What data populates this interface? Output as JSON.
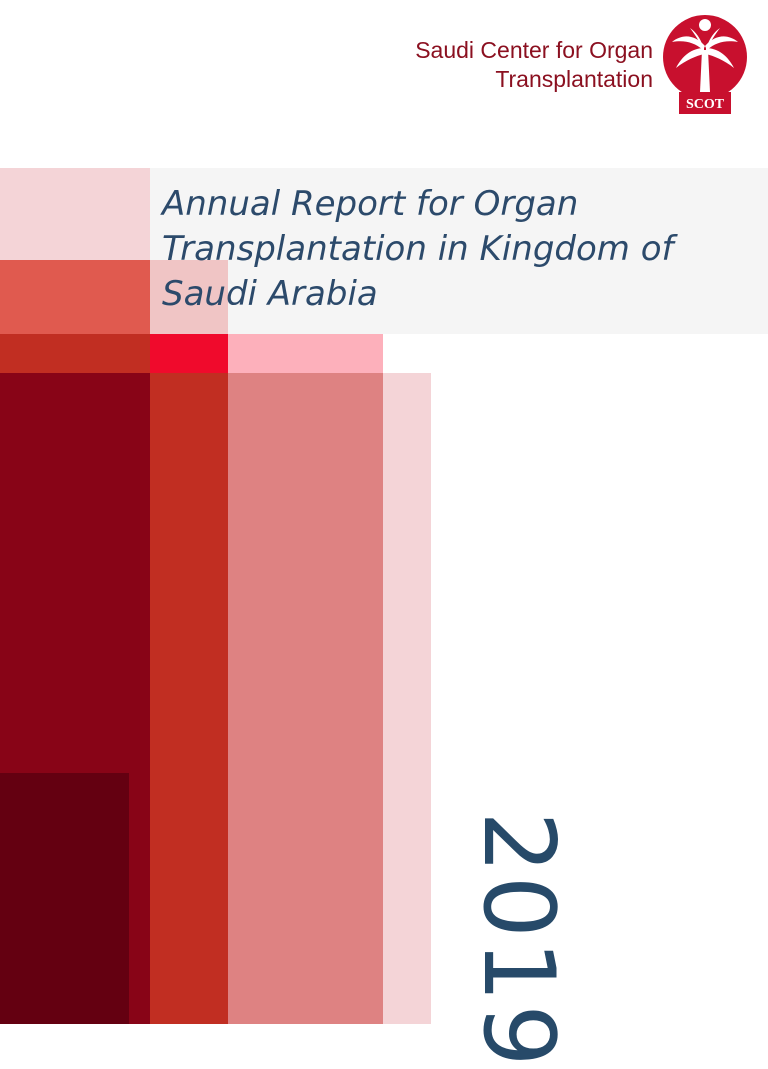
{
  "header": {
    "org_line1": "Saudi Center for Organ",
    "org_line2": "Transplantation",
    "logo": {
      "icon": "palm-tree-logo-icon",
      "text": "SCOT",
      "color": "#c8102e"
    }
  },
  "report": {
    "title_line1": "Annual Report for Organ",
    "title_line2": "Transplantation in Kingdom of",
    "title_line3": "Saudi Arabia",
    "year": "2019"
  },
  "colors": {
    "title_text": "#2c4a6b",
    "org_text": "#8b1020",
    "deep_red": "#880417",
    "darkest_red": "#640011",
    "brick_red": "#c12e22",
    "rose": "#de8282",
    "pale_pink": "#f4d4d7",
    "bright_red": "#f00a2c"
  }
}
